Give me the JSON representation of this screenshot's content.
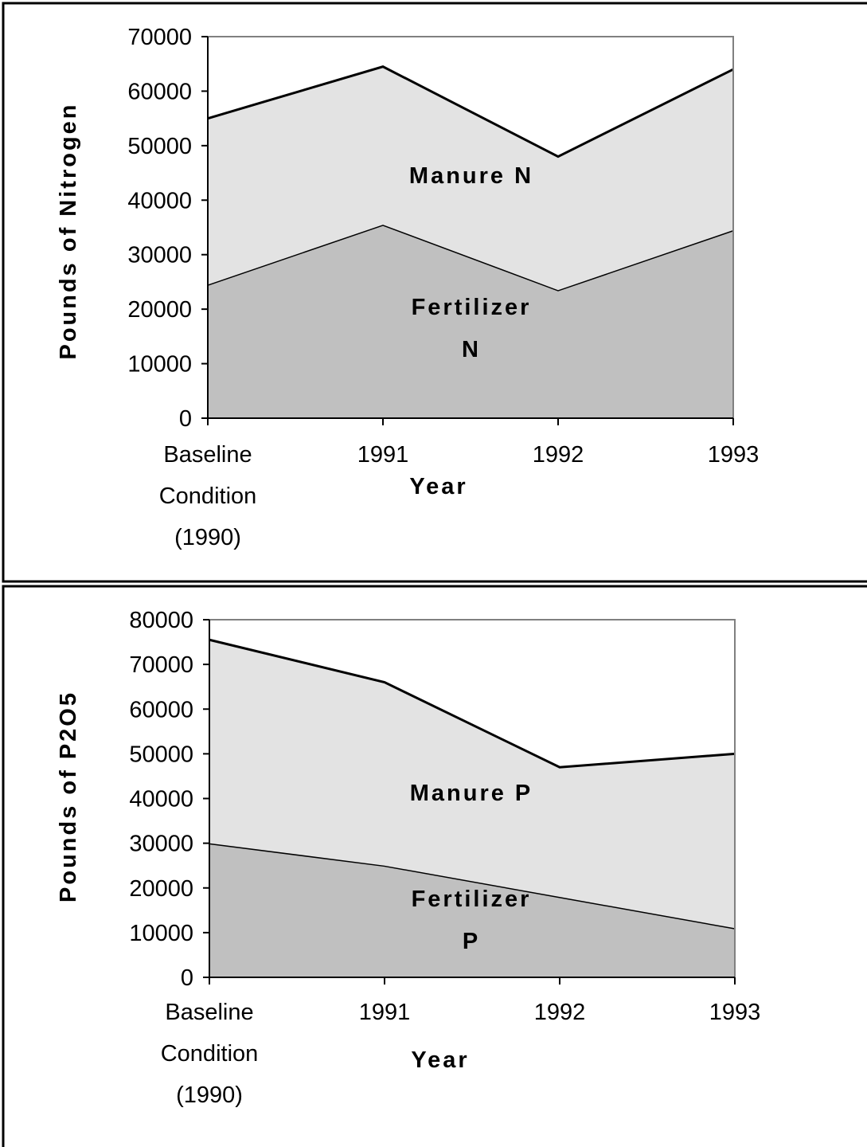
{
  "chart_data": [
    {
      "type": "stacked_area",
      "xlabel": "Year",
      "ylabel": "Pounds of Nitrogen",
      "categories": [
        "Baseline Condition (1990)",
        "1991",
        "1992",
        "1993"
      ],
      "series": [
        {
          "name": "Fertilizer N",
          "color": "#c0c0c0",
          "values": [
            24500,
            35500,
            23500,
            34500
          ]
        },
        {
          "name": "Manure N",
          "color": "#e3e3e3",
          "values": [
            30500,
            29000,
            24500,
            29500
          ]
        }
      ],
      "ylim": [
        0,
        70000
      ],
      "yticks": [
        0,
        10000,
        20000,
        30000,
        40000,
        50000,
        60000,
        70000
      ]
    },
    {
      "type": "stacked_area",
      "xlabel": "Year",
      "ylabel": "Pounds of P2O5",
      "categories": [
        "Baseline Condition (1990)",
        "1991",
        "1992",
        "1993"
      ],
      "series": [
        {
          "name": "Fertilizer P",
          "color": "#c0c0c0",
          "values": [
            30000,
            25000,
            18000,
            11000
          ]
        },
        {
          "name": "Manure P",
          "color": "#e3e3e3",
          "values": [
            45500,
            41000,
            29000,
            39000
          ]
        }
      ],
      "ylim": [
        0,
        80000
      ],
      "yticks": [
        0,
        10000,
        20000,
        30000,
        40000,
        50000,
        60000,
        70000,
        80000
      ]
    }
  ]
}
